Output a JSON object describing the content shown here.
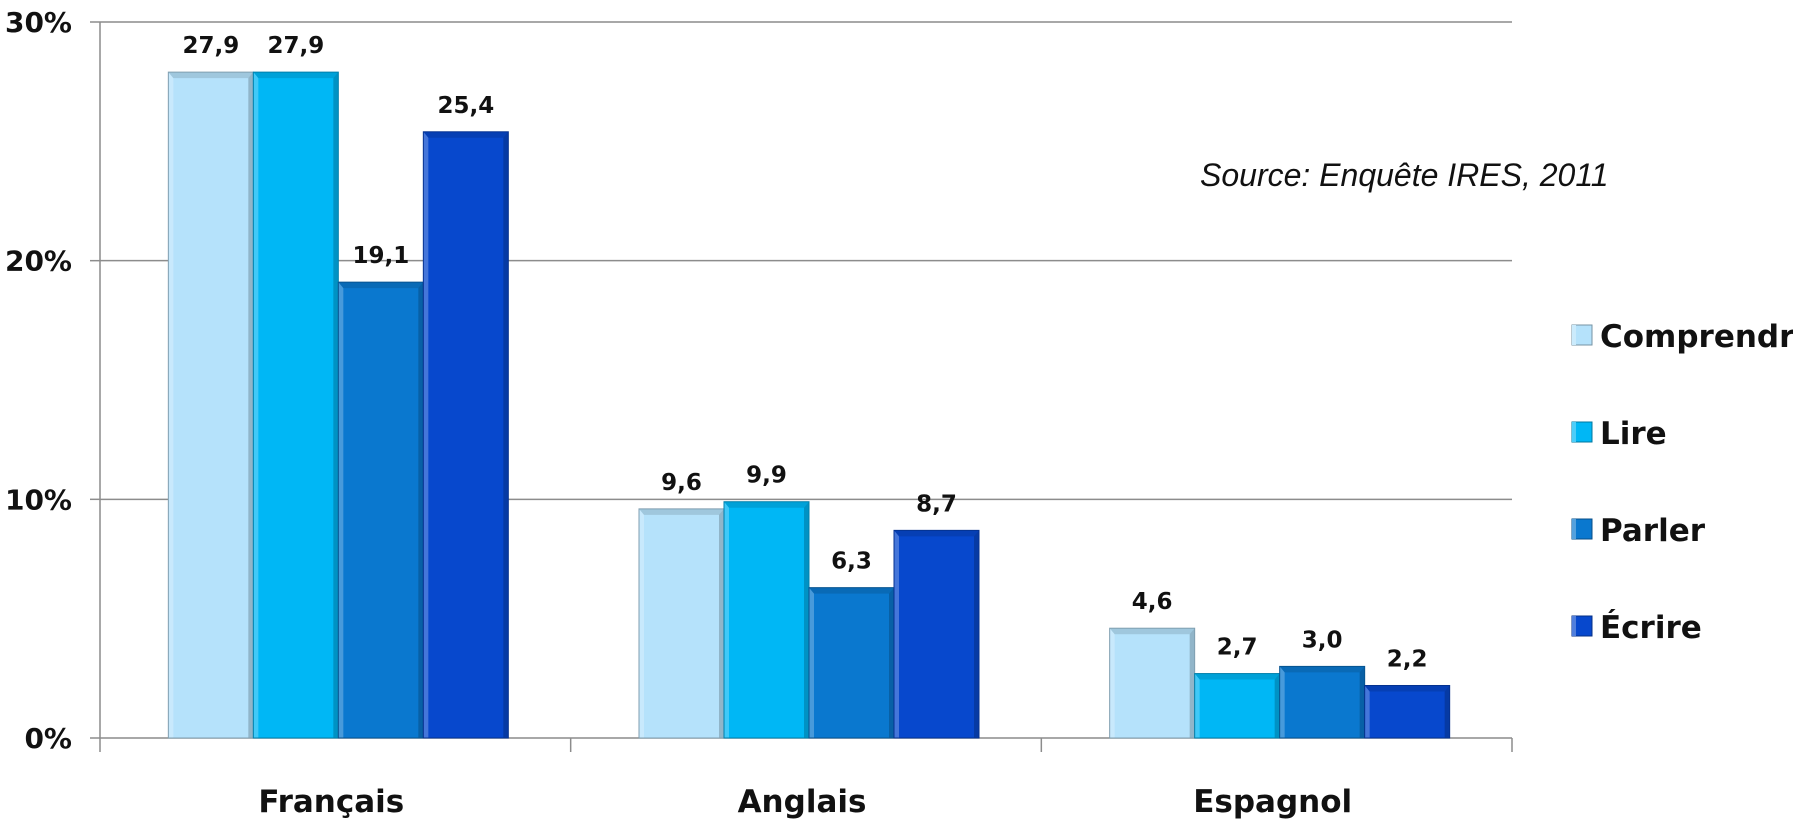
{
  "chart_data": {
    "type": "bar",
    "categories": [
      "Français",
      "Anglais",
      "Espagnol"
    ],
    "series": [
      {
        "name": "Comprendre",
        "values": [
          27.9,
          9.6,
          4.6
        ],
        "labels": [
          "27,9",
          "9,6",
          "4,6"
        ],
        "color": "#b5e2fb"
      },
      {
        "name": "Lire",
        "values": [
          27.9,
          9.9,
          2.7
        ],
        "labels": [
          "27,9",
          "9,9",
          "2,7"
        ],
        "color": "#00b7f5"
      },
      {
        "name": "Parler",
        "values": [
          19.1,
          6.3,
          3.0
        ],
        "labels": [
          "19,1",
          "6,3",
          "3,0"
        ],
        "color": "#0a78cf"
      },
      {
        "name": "Écrire",
        "values": [
          25.4,
          8.7,
          2.2
        ],
        "labels": [
          "25,4",
          "8,7",
          "2,2"
        ],
        "color": "#0748cd"
      }
    ],
    "y_ticks": [
      0,
      10,
      20,
      30
    ],
    "y_tick_labels": [
      "0%",
      "10%",
      "20%",
      "30%"
    ],
    "ylim": [
      0,
      30
    ],
    "grid": true,
    "legend_position": "right",
    "annotation": "Source: Enquête IRES, 2011"
  }
}
